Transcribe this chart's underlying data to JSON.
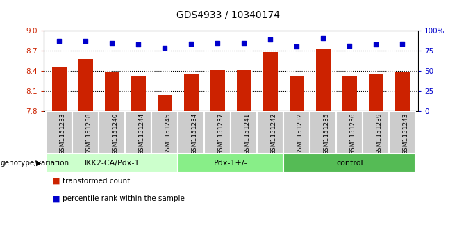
{
  "title": "GDS4933 / 10340174",
  "samples": [
    "GSM1151233",
    "GSM1151238",
    "GSM1151240",
    "GSM1151244",
    "GSM1151245",
    "GSM1151234",
    "GSM1151237",
    "GSM1151241",
    "GSM1151242",
    "GSM1151232",
    "GSM1151235",
    "GSM1151236",
    "GSM1151239",
    "GSM1151243"
  ],
  "bar_values": [
    8.45,
    8.57,
    8.38,
    8.32,
    8.03,
    8.36,
    8.41,
    8.41,
    8.68,
    8.31,
    8.72,
    8.32,
    8.35,
    8.39
  ],
  "dot_values": [
    87,
    87,
    84,
    82,
    78,
    83,
    84,
    84,
    88,
    80,
    90,
    81,
    82,
    83
  ],
  "ylim_left": [
    7.8,
    9.0
  ],
  "ylim_right": [
    0,
    100
  ],
  "yticks_left": [
    7.8,
    8.1,
    8.4,
    8.7,
    9.0
  ],
  "yticks_right": [
    0,
    25,
    50,
    75,
    100
  ],
  "hlines": [
    8.1,
    8.4,
    8.7
  ],
  "groups": [
    {
      "label": "IKK2-CA/Pdx-1",
      "start": 0,
      "end": 5,
      "color": "#ccffcc"
    },
    {
      "label": "Pdx-1+/-",
      "start": 5,
      "end": 9,
      "color": "#88ee88"
    },
    {
      "label": "control",
      "start": 9,
      "end": 14,
      "color": "#55bb55"
    }
  ],
  "bar_color": "#cc2200",
  "dot_color": "#0000cc",
  "bar_width": 0.55,
  "tick_color_left": "#cc2200",
  "tick_color_right": "#0000cc",
  "group_label": "genotype/variation",
  "legend_bar": "transformed count",
  "legend_dot": "percentile rank within the sample",
  "background_color": "#ffffff",
  "sample_box_color": "#cccccc",
  "sample_box_edge": "#ffffff"
}
